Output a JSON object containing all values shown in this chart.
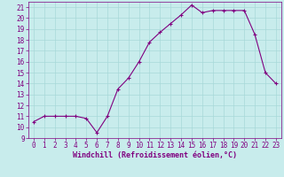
{
  "x": [
    0,
    1,
    2,
    3,
    4,
    5,
    6,
    7,
    8,
    9,
    10,
    11,
    12,
    13,
    14,
    15,
    16,
    17,
    18,
    19,
    20,
    21,
    22,
    23
  ],
  "y": [
    10.5,
    11.0,
    11.0,
    11.0,
    11.0,
    10.8,
    9.5,
    11.0,
    13.5,
    14.5,
    16.0,
    17.8,
    18.7,
    19.5,
    20.3,
    21.2,
    20.5,
    20.7,
    20.7,
    20.7,
    20.7,
    18.5,
    15.0,
    14.0
  ],
  "line_color": "#800080",
  "marker": "+",
  "marker_color": "#800080",
  "marker_size": 3,
  "bg_color": "#c8ecec",
  "grid_color": "#a8d8d8",
  "xlabel": "Windchill (Refroidissement éolien,°C)",
  "xlabel_color": "#800080",
  "ylim": [
    9,
    21.5
  ],
  "xlim": [
    -0.5,
    23.5
  ],
  "yticks": [
    9,
    10,
    11,
    12,
    13,
    14,
    15,
    16,
    17,
    18,
    19,
    20,
    21
  ],
  "xticks": [
    0,
    1,
    2,
    3,
    4,
    5,
    6,
    7,
    8,
    9,
    10,
    11,
    12,
    13,
    14,
    15,
    16,
    17,
    18,
    19,
    20,
    21,
    22,
    23
  ],
  "tick_color": "#800080",
  "tick_fontsize": 5.5,
  "xlabel_fontsize": 6.0,
  "linewidth": 0.8
}
